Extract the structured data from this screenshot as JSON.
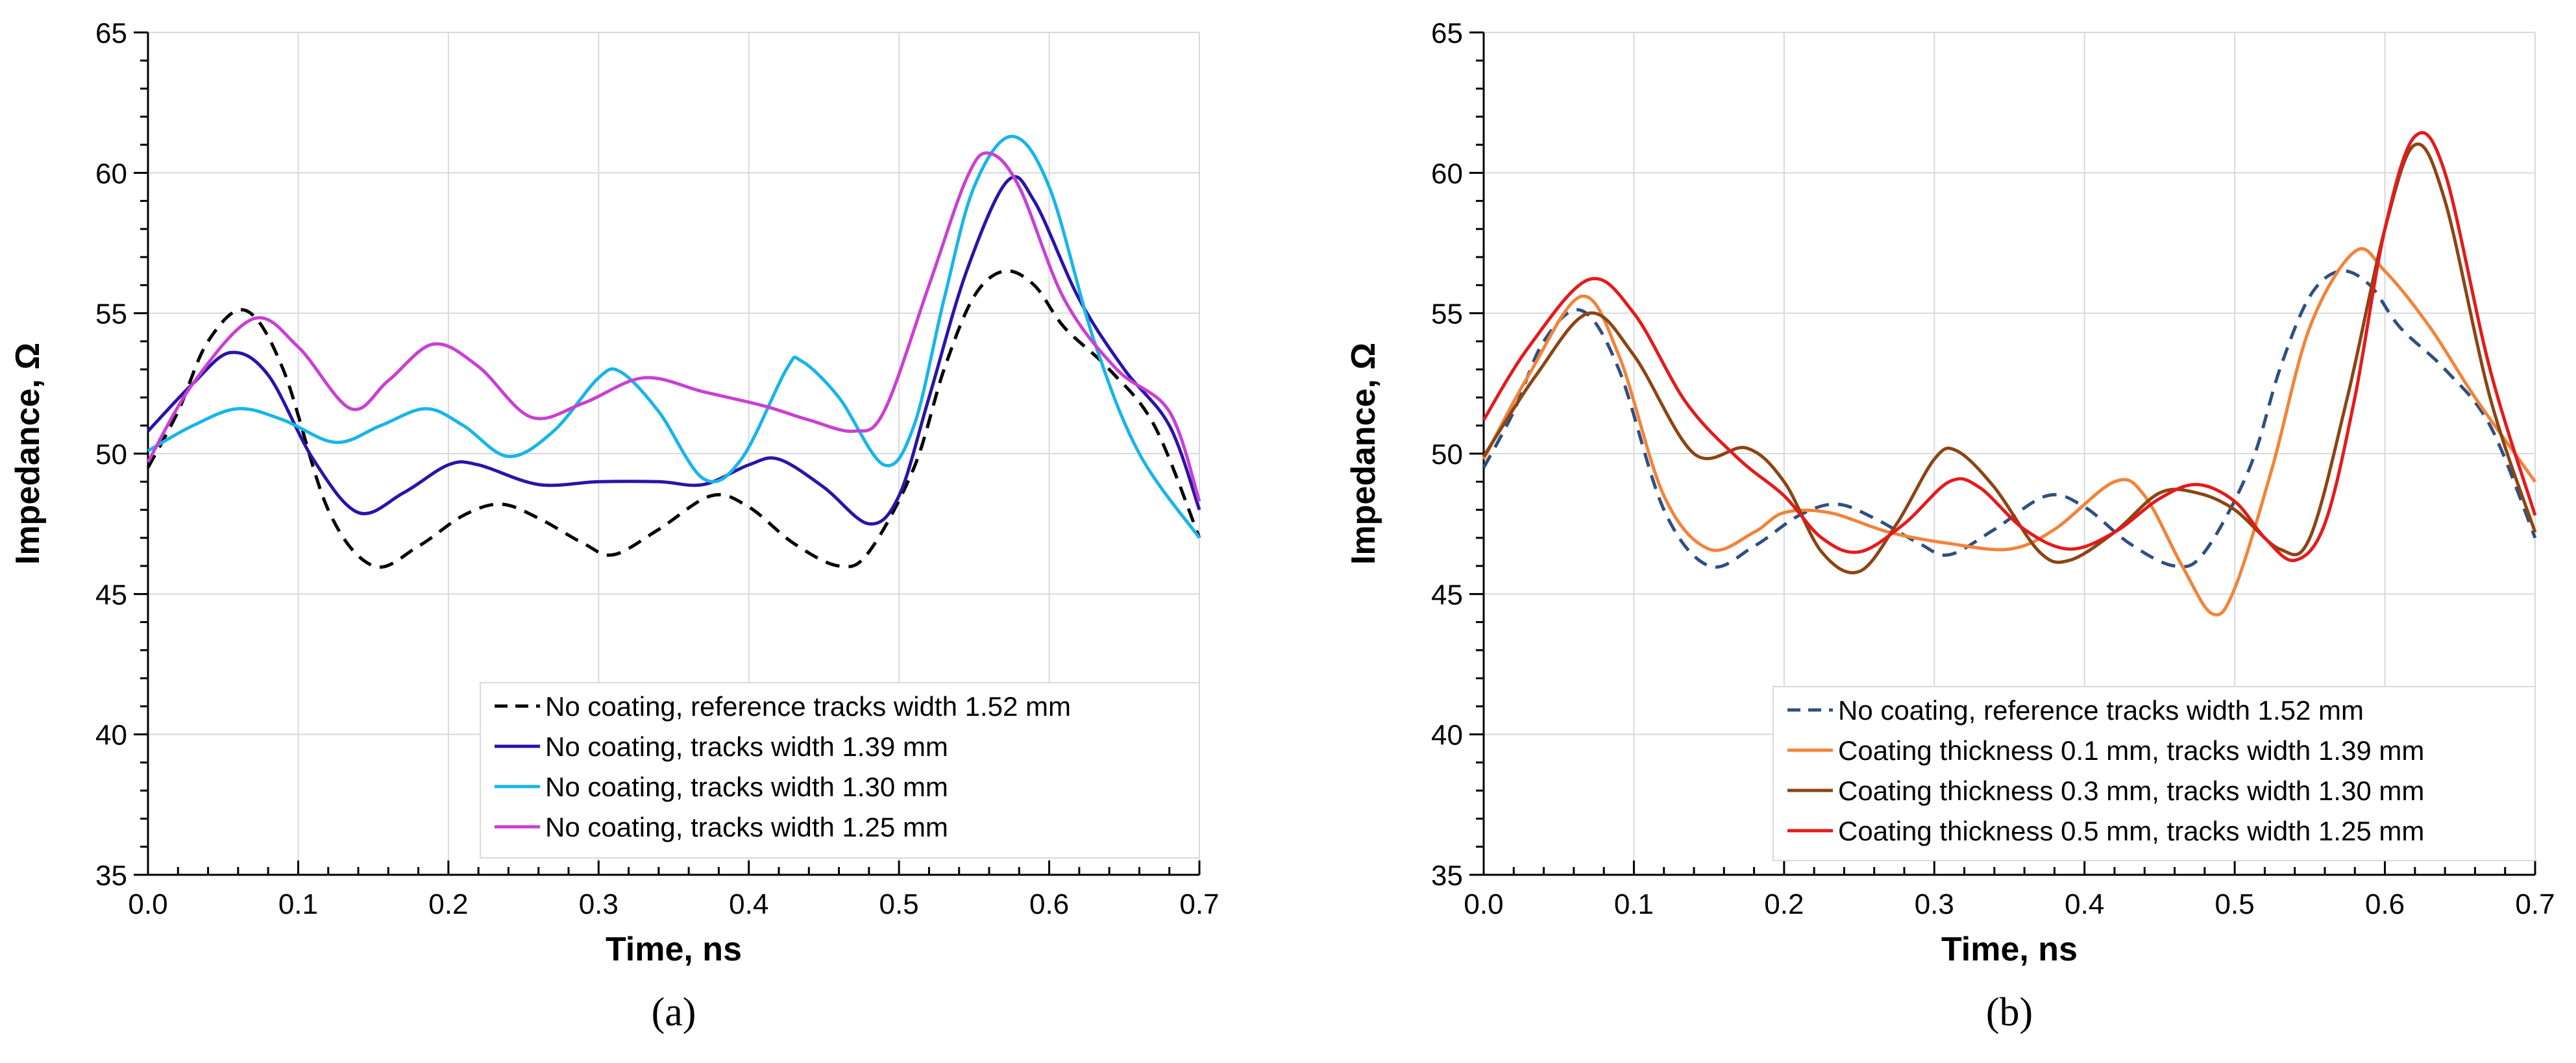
{
  "chart_data": [
    {
      "type": "line",
      "panel_label": "(a)",
      "xlabel": "Time, ns",
      "ylabel": "Impedance, Ω",
      "xlim": [
        0,
        0.7
      ],
      "ylim": [
        35,
        65
      ],
      "x_ticks": [
        "0.0",
        "0.1",
        "0.2",
        "0.3",
        "0.4",
        "0.5",
        "0.6",
        "0.7"
      ],
      "y_ticks": [
        "35",
        "40",
        "45",
        "50",
        "55",
        "60",
        "65"
      ],
      "grid": true,
      "legend_position": "bottom-right",
      "series": [
        {
          "name": "No coating, reference tracks width 1.52 mm",
          "color": "#000000",
          "dash": "dashed",
          "points": [
            [
              0.0,
              49.5
            ],
            [
              0.02,
              51.5
            ],
            [
              0.04,
              54.0
            ],
            [
              0.065,
              55.1
            ],
            [
              0.09,
              53.0
            ],
            [
              0.12,
              48.0
            ],
            [
              0.15,
              46.0
            ],
            [
              0.18,
              46.7
            ],
            [
              0.21,
              47.8
            ],
            [
              0.235,
              48.2
            ],
            [
              0.26,
              47.7
            ],
            [
              0.29,
              46.8
            ],
            [
              0.31,
              46.4
            ],
            [
              0.34,
              47.3
            ],
            [
              0.375,
              48.5
            ],
            [
              0.4,
              48.1
            ],
            [
              0.43,
              46.8
            ],
            [
              0.46,
              46.0
            ],
            [
              0.48,
              46.5
            ],
            [
              0.51,
              49.5
            ],
            [
              0.53,
              53.0
            ],
            [
              0.55,
              55.6
            ],
            [
              0.57,
              56.5
            ],
            [
              0.59,
              56.0
            ],
            [
              0.61,
              54.5
            ],
            [
              0.64,
              53.0
            ],
            [
              0.67,
              51.0
            ],
            [
              0.7,
              47.0
            ]
          ]
        },
        {
          "name": "No coating, tracks width 1.39 mm",
          "color": "#2a14a8",
          "dash": "solid",
          "points": [
            [
              0.0,
              50.8
            ],
            [
              0.03,
              52.5
            ],
            [
              0.055,
              53.6
            ],
            [
              0.08,
              52.8
            ],
            [
              0.11,
              49.8
            ],
            [
              0.14,
              47.9
            ],
            [
              0.17,
              48.6
            ],
            [
              0.2,
              49.6
            ],
            [
              0.22,
              49.6
            ],
            [
              0.26,
              48.9
            ],
            [
              0.3,
              49.0
            ],
            [
              0.34,
              49.0
            ],
            [
              0.37,
              48.9
            ],
            [
              0.4,
              49.6
            ],
            [
              0.42,
              49.8
            ],
            [
              0.45,
              48.8
            ],
            [
              0.48,
              47.5
            ],
            [
              0.5,
              48.5
            ],
            [
              0.52,
              52.0
            ],
            [
              0.545,
              56.5
            ],
            [
              0.572,
              59.7
            ],
            [
              0.59,
              59.0
            ],
            [
              0.62,
              55.5
            ],
            [
              0.65,
              53.0
            ],
            [
              0.68,
              51.0
            ],
            [
              0.7,
              48.0
            ]
          ]
        },
        {
          "name": "No coating, tracks width 1.30 mm",
          "color": "#17b5ea",
          "dash": "solid",
          "points": [
            [
              0.0,
              50.1
            ],
            [
              0.03,
              51.0
            ],
            [
              0.06,
              51.6
            ],
            [
              0.09,
              51.2
            ],
            [
              0.125,
              50.4
            ],
            [
              0.155,
              51.0
            ],
            [
              0.185,
              51.6
            ],
            [
              0.21,
              51.0
            ],
            [
              0.24,
              49.9
            ],
            [
              0.27,
              50.8
            ],
            [
              0.3,
              52.7
            ],
            [
              0.315,
              52.9
            ],
            [
              0.34,
              51.5
            ],
            [
              0.37,
              49.1
            ],
            [
              0.395,
              49.8
            ],
            [
              0.425,
              53.0
            ],
            [
              0.435,
              53.3
            ],
            [
              0.46,
              52.0
            ],
            [
              0.49,
              49.6
            ],
            [
              0.51,
              51.0
            ],
            [
              0.53,
              55.5
            ],
            [
              0.55,
              59.5
            ],
            [
              0.575,
              61.3
            ],
            [
              0.6,
              59.5
            ],
            [
              0.63,
              54.0
            ],
            [
              0.66,
              50.0
            ],
            [
              0.7,
              47.0
            ]
          ]
        },
        {
          "name": "No coating, tracks width 1.25 mm",
          "color": "#c940d2",
          "dash": "solid",
          "points": [
            [
              0.0,
              49.7
            ],
            [
              0.03,
              52.5
            ],
            [
              0.07,
              54.8
            ],
            [
              0.1,
              53.8
            ],
            [
              0.135,
              51.6
            ],
            [
              0.16,
              52.6
            ],
            [
              0.19,
              53.9
            ],
            [
              0.22,
              53.1
            ],
            [
              0.255,
              51.3
            ],
            [
              0.29,
              51.8
            ],
            [
              0.33,
              52.7
            ],
            [
              0.37,
              52.2
            ],
            [
              0.41,
              51.7
            ],
            [
              0.44,
              51.2
            ],
            [
              0.47,
              50.8
            ],
            [
              0.49,
              51.5
            ],
            [
              0.52,
              56.0
            ],
            [
              0.545,
              59.8
            ],
            [
              0.56,
              60.7
            ],
            [
              0.58,
              59.5
            ],
            [
              0.61,
              55.5
            ],
            [
              0.645,
              53.0
            ],
            [
              0.68,
              51.5
            ],
            [
              0.7,
              48.3
            ]
          ]
        }
      ]
    },
    {
      "type": "line",
      "panel_label": "(b)",
      "xlabel": "Time, ns",
      "ylabel": "Impedance, Ω",
      "xlim": [
        0,
        0.7
      ],
      "ylim": [
        35,
        65
      ],
      "x_ticks": [
        "0.0",
        "0.1",
        "0.2",
        "0.3",
        "0.4",
        "0.5",
        "0.6",
        "0.7"
      ],
      "y_ticks": [
        "35",
        "40",
        "45",
        "50",
        "55",
        "60",
        "65"
      ],
      "grid": true,
      "legend_position": "bottom-right",
      "series": [
        {
          "name": "No coating, reference tracks width 1.52 mm",
          "color": "#2f4f80",
          "dash": "dashed",
          "points": [
            [
              0.0,
              49.5
            ],
            [
              0.02,
              51.5
            ],
            [
              0.04,
              54.0
            ],
            [
              0.065,
              55.1
            ],
            [
              0.09,
              53.0
            ],
            [
              0.12,
              48.0
            ],
            [
              0.15,
              46.0
            ],
            [
              0.18,
              46.7
            ],
            [
              0.21,
              47.8
            ],
            [
              0.235,
              48.2
            ],
            [
              0.26,
              47.7
            ],
            [
              0.29,
              46.8
            ],
            [
              0.31,
              46.4
            ],
            [
              0.34,
              47.3
            ],
            [
              0.375,
              48.5
            ],
            [
              0.4,
              48.1
            ],
            [
              0.43,
              46.8
            ],
            [
              0.46,
              46.0
            ],
            [
              0.48,
              46.5
            ],
            [
              0.51,
              49.5
            ],
            [
              0.53,
              53.0
            ],
            [
              0.55,
              55.6
            ],
            [
              0.57,
              56.5
            ],
            [
              0.59,
              56.0
            ],
            [
              0.61,
              54.5
            ],
            [
              0.64,
              53.0
            ],
            [
              0.67,
              51.0
            ],
            [
              0.7,
              47.0
            ]
          ]
        },
        {
          "name": "Coating thickness 0.1 mm, tracks width 1.39 mm",
          "color": "#f0843a",
          "dash": "solid",
          "points": [
            [
              0.0,
              49.8
            ],
            [
              0.03,
              52.8
            ],
            [
              0.065,
              55.6
            ],
            [
              0.09,
              53.5
            ],
            [
              0.12,
              48.5
            ],
            [
              0.15,
              46.6
            ],
            [
              0.18,
              47.2
            ],
            [
              0.2,
              47.9
            ],
            [
              0.23,
              47.9
            ],
            [
              0.27,
              47.2
            ],
            [
              0.31,
              46.8
            ],
            [
              0.35,
              46.6
            ],
            [
              0.38,
              47.3
            ],
            [
              0.42,
              49.0
            ],
            [
              0.44,
              48.5
            ],
            [
              0.465,
              46.0
            ],
            [
              0.485,
              44.3
            ],
            [
              0.5,
              45.2
            ],
            [
              0.525,
              49.5
            ],
            [
              0.55,
              54.5
            ],
            [
              0.58,
              57.2
            ],
            [
              0.6,
              56.5
            ],
            [
              0.63,
              54.5
            ],
            [
              0.66,
              52.0
            ],
            [
              0.7,
              49.0
            ]
          ]
        },
        {
          "name": "Coating thickness 0.3 mm, tracks width 1.30 mm",
          "color": "#8b4513",
          "dash": "solid",
          "points": [
            [
              0.0,
              49.9
            ],
            [
              0.035,
              52.8
            ],
            [
              0.07,
              55.0
            ],
            [
              0.1,
              53.5
            ],
            [
              0.14,
              50.0
            ],
            [
              0.175,
              50.2
            ],
            [
              0.2,
              49.0
            ],
            [
              0.225,
              46.5
            ],
            [
              0.25,
              45.8
            ],
            [
              0.275,
              47.5
            ],
            [
              0.3,
              49.8
            ],
            [
              0.315,
              50.1
            ],
            [
              0.34,
              48.8
            ],
            [
              0.37,
              46.5
            ],
            [
              0.39,
              46.2
            ],
            [
              0.42,
              47.2
            ],
            [
              0.45,
              48.6
            ],
            [
              0.475,
              48.6
            ],
            [
              0.5,
              48.0
            ],
            [
              0.53,
              46.6
            ],
            [
              0.55,
              47.0
            ],
            [
              0.575,
              52.0
            ],
            [
              0.6,
              58.0
            ],
            [
              0.62,
              61.0
            ],
            [
              0.64,
              59.0
            ],
            [
              0.67,
              52.0
            ],
            [
              0.7,
              47.2
            ]
          ]
        },
        {
          "name": "Coating thickness 0.5 mm, tracks width 1.25 mm",
          "color": "#e41a1c",
          "dash": "solid",
          "points": [
            [
              0.0,
              51.2
            ],
            [
              0.03,
              53.8
            ],
            [
              0.07,
              56.2
            ],
            [
              0.1,
              55.0
            ],
            [
              0.135,
              51.8
            ],
            [
              0.17,
              49.8
            ],
            [
              0.2,
              48.5
            ],
            [
              0.225,
              47.0
            ],
            [
              0.25,
              46.5
            ],
            [
              0.28,
              47.5
            ],
            [
              0.31,
              49.0
            ],
            [
              0.33,
              48.8
            ],
            [
              0.36,
              47.3
            ],
            [
              0.39,
              46.6
            ],
            [
              0.42,
              47.2
            ],
            [
              0.45,
              48.4
            ],
            [
              0.475,
              48.9
            ],
            [
              0.5,
              48.3
            ],
            [
              0.52,
              47.0
            ],
            [
              0.54,
              46.2
            ],
            [
              0.56,
              47.5
            ],
            [
              0.58,
              52.0
            ],
            [
              0.6,
              58.0
            ],
            [
              0.62,
              61.3
            ],
            [
              0.64,
              60.0
            ],
            [
              0.67,
              53.0
            ],
            [
              0.7,
              47.8
            ]
          ]
        }
      ]
    }
  ]
}
